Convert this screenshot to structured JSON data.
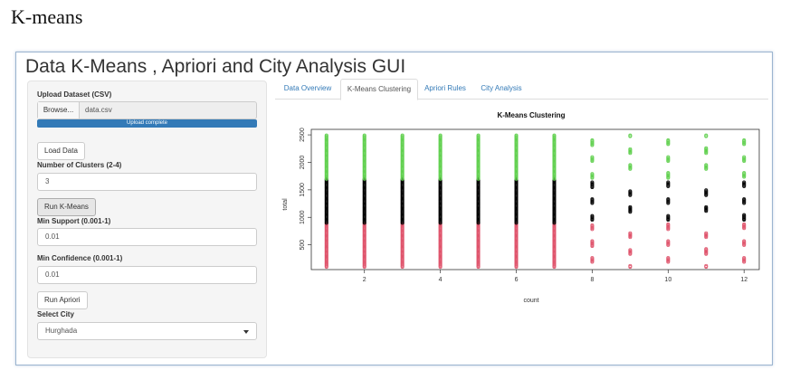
{
  "caption": "K-means",
  "app": {
    "title": "Data K-Means , Apriori and City Analysis GUI"
  },
  "sidebar": {
    "upload_label": "Upload Dataset (CSV)",
    "browse_label": "Browse...",
    "file_name": "data.csv",
    "upload_status": "Upload complete",
    "upload_progress": 1.0,
    "load_button": "Load Data",
    "clusters_label": "Number of Clusters (2-4)",
    "clusters_value": "3",
    "run_kmeans_button": "Run K-Means",
    "support_label": "Min Support (0.001-1)",
    "support_value": "0.01",
    "confidence_label": "Min Confidence (0.001-1)",
    "confidence_value": "0.01",
    "run_apriori_button": "Run Apriori",
    "city_label": "Select City",
    "city_value": "Hurghada"
  },
  "tabs": [
    {
      "label": "Data Overview",
      "active": false
    },
    {
      "label": "K-Means Clustering",
      "active": true
    },
    {
      "label": "Apriori Rules",
      "active": false
    },
    {
      "label": "City Analysis",
      "active": false
    }
  ],
  "colors": {
    "cluster_low": "#df536b",
    "cluster_mid": "#000000",
    "cluster_high": "#61d04f",
    "accent": "#337ab7"
  },
  "chart_data": {
    "type": "scatter",
    "title": "K-Means Clustering",
    "xlabel": "count",
    "ylabel": "total",
    "x": [
      1,
      2,
      3,
      4,
      5,
      6,
      7,
      8,
      9,
      10,
      11,
      12
    ],
    "xticks": [
      2,
      4,
      6,
      8,
      10,
      12
    ],
    "yticks": [
      500,
      1000,
      1500,
      2000,
      2500
    ],
    "xlim": [
      0.6,
      12.4
    ],
    "ylim": [
      50,
      2600
    ],
    "series": [
      {
        "color": "#df536b",
        "y_range_per_x": [
          [
            100,
            900
          ]
        ]
      },
      {
        "color": "#000000",
        "y_range_per_x": [
          [
            900,
            1700
          ]
        ]
      },
      {
        "color": "#61d04f",
        "y_range_per_x": [
          [
            1700,
            2500
          ]
        ]
      }
    ],
    "grid": false,
    "legend": "none"
  }
}
